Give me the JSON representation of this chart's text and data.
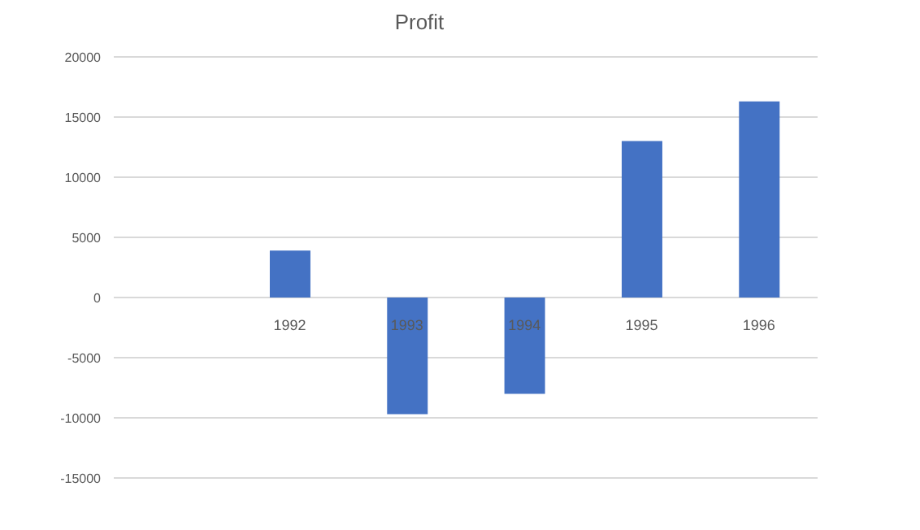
{
  "chart_data": {
    "type": "bar",
    "title": "Profit",
    "categories": [
      null,
      "1992",
      "1993",
      "1994",
      "1995",
      "1996"
    ],
    "values": [
      null,
      3900,
      -9700,
      -8000,
      13000,
      16300
    ],
    "color": "#4472c4",
    "ylim": [
      -15000,
      20000
    ],
    "yticks": [
      -15000,
      -10000,
      -5000,
      0,
      5000,
      10000,
      15000,
      20000
    ],
    "grid": "y"
  }
}
